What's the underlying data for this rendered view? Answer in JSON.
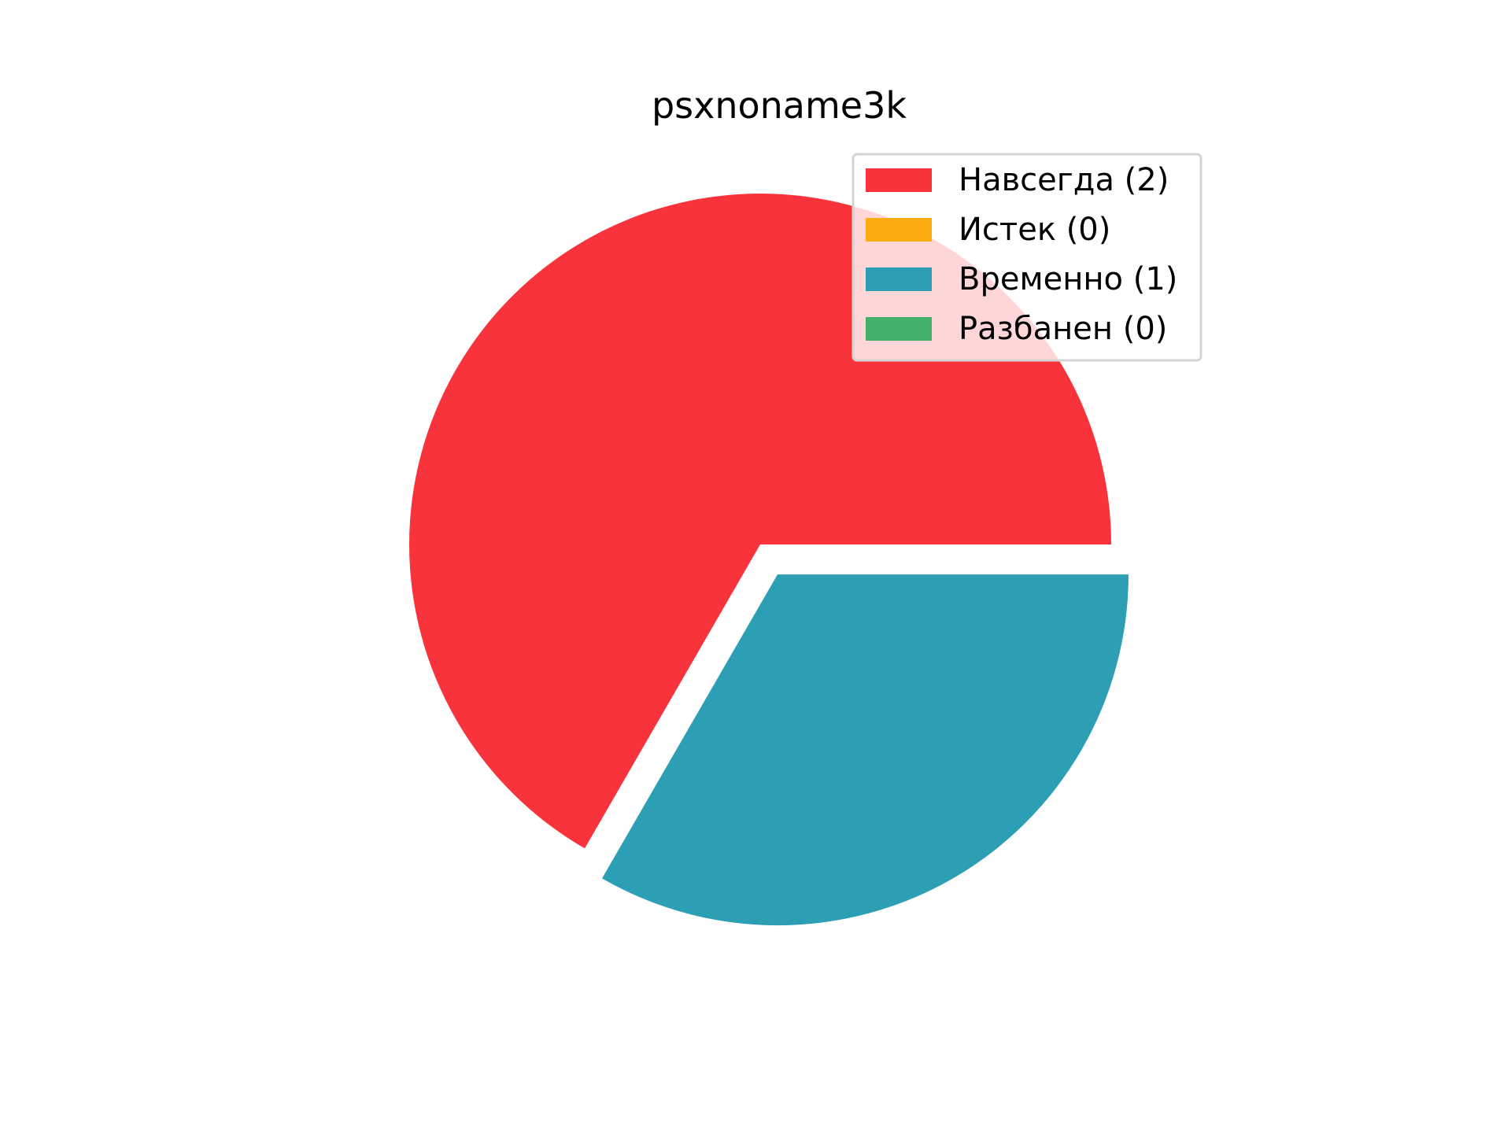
{
  "chart_data": {
    "type": "pie",
    "title": "psxnoname3k",
    "categories": [
      "Навсегда",
      "Истек",
      "Временно",
      "Разбанен"
    ],
    "values": [
      2,
      0,
      1,
      0
    ],
    "colors": [
      "#f8333c",
      "#fcab10",
      "#2d9fb4",
      "#44af69"
    ],
    "legend_labels": [
      "Навсегда (2)",
      "Истек (0)",
      "Временно (1)",
      "Разбанен (0)"
    ],
    "exploded": [
      "Временно"
    ],
    "start_angle_deg": 0,
    "direction": "counterclockwise",
    "legend_position": "top-right"
  }
}
